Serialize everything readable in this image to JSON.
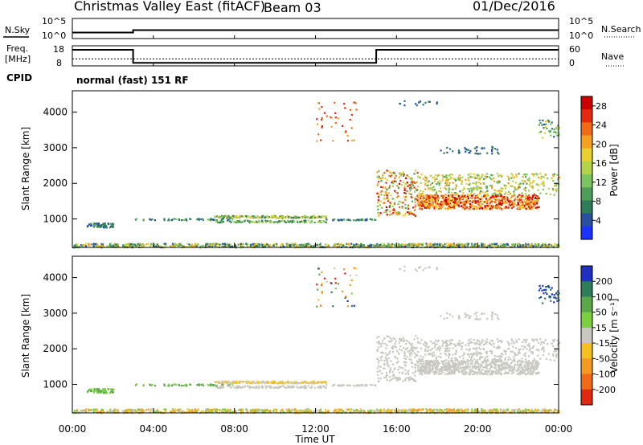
{
  "chart_data": {
    "type": "heatmap",
    "title": "Christmas Valley East (fitACF)",
    "beam": "Beam 03",
    "date": "01/Dec/2016",
    "xlabel": "Time UT",
    "x_ticks": [
      "00:00",
      "04:00",
      "08:00",
      "12:00",
      "16:00",
      "20:00",
      "00:00"
    ],
    "x_range_hours": [
      0,
      24
    ],
    "noise": {
      "left_label": "N.Sky",
      "right_label": "N.Search",
      "left_ticks": [
        "10^5",
        "10^0"
      ],
      "right_ticks": [
        "10^5",
        "10^0"
      ],
      "sky_profile": [
        [
          0,
          0.3
        ],
        [
          3,
          0.3
        ],
        [
          3,
          0.42
        ],
        [
          24,
          0.42
        ]
      ]
    },
    "frequency": {
      "left_label_line1": "Freq.",
      "left_label_line2": "[MHz]",
      "left_ticks": [
        "18",
        "8"
      ],
      "right_label": "Nave",
      "right_ticks": [
        "60",
        "0"
      ],
      "freq_profile": [
        [
          0,
          0.8
        ],
        [
          3,
          0.8
        ],
        [
          3,
          0.15
        ],
        [
          15,
          0.15
        ],
        [
          15,
          0.8
        ],
        [
          24,
          0.8
        ]
      ],
      "nave_level": 0.35
    },
    "cpid": {
      "label": "CPID",
      "value": "normal (fast) 151 RF"
    },
    "power_panel": {
      "ylabel": "Slant Range [km]",
      "y_ticks": [
        1000,
        2000,
        3000,
        4000
      ],
      "ylim": [
        200,
        4600
      ],
      "colorbar_label": "Power [dB]",
      "colorbar_ticks": [
        4,
        8,
        12,
        16,
        20,
        24,
        28
      ],
      "colorbar_range": [
        0,
        30
      ],
      "colors": [
        "#1a33ff",
        "#2a4fa0",
        "#2e7d5a",
        "#4e9e5a",
        "#7cc460",
        "#b4d24a",
        "#e8d030",
        "#f5a020",
        "#f06a18",
        "#e62a10",
        "#cc0000"
      ]
    },
    "velocity_panel": {
      "ylabel": "Slant Range [km]",
      "y_ticks": [
        1000,
        2000,
        3000,
        4000
      ],
      "ylim": [
        200,
        4600
      ],
      "colorbar_label": "Velocity [m s⁻¹]",
      "colorbar_ticks": [
        200,
        100,
        50,
        15,
        -15,
        -50,
        -100,
        -200
      ],
      "colors": [
        "#2030c0",
        "#2e7d5a",
        "#5aa84a",
        "#7cd040",
        "#c8c8c0",
        "#f5c020",
        "#f59a20",
        "#f06a18",
        "#e02a10"
      ]
    }
  }
}
